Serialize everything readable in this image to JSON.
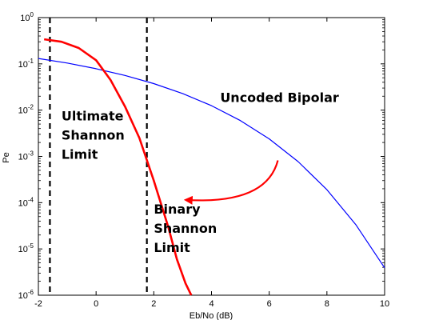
{
  "chart_data": {
    "type": "line",
    "xlabel": "Eb/No (dB)",
    "ylabel": "Pe",
    "xlim": [
      -2,
      10
    ],
    "ylim": [
      1e-06,
      1
    ],
    "yscale": "log",
    "xticks": [
      -2,
      0,
      2,
      4,
      6,
      8,
      10
    ],
    "yticks": [
      {
        "value": 1,
        "base": "10",
        "exp": "0"
      },
      {
        "value": 0.1,
        "base": "10",
        "exp": "-1"
      },
      {
        "value": 0.01,
        "base": "10",
        "exp": "-2"
      },
      {
        "value": 0.001,
        "base": "10",
        "exp": "-3"
      },
      {
        "value": 0.0001,
        "base": "10",
        "exp": "-4"
      },
      {
        "value": 1e-05,
        "base": "10",
        "exp": "-5"
      },
      {
        "value": 1e-06,
        "base": "10",
        "exp": "-6"
      }
    ],
    "grid": false,
    "series": [
      {
        "name": "Uncoded Bipolar",
        "color": "#0000ff",
        "x": [
          -2,
          -1,
          0,
          1,
          2,
          3,
          4,
          5,
          6,
          7,
          8,
          9,
          10
        ],
        "y": [
          0.131,
          0.104,
          0.0786,
          0.0563,
          0.0375,
          0.0229,
          0.0125,
          0.00595,
          0.00239,
          0.000773,
          0.000191,
          3.36e-05,
          3.9e-06
        ]
      },
      {
        "color": "#ff0000",
        "x": [
          -1.8,
          -1.2,
          -0.6,
          0,
          0.5,
          1.0,
          1.5,
          2.0,
          2.5,
          2.8,
          3.1,
          3.3
        ],
        "y": [
          0.34,
          0.3,
          0.22,
          0.12,
          0.045,
          0.012,
          0.0025,
          0.0003,
          3e-05,
          6e-06,
          1.8e-06,
          1e-06
        ]
      }
    ],
    "vlines": [
      {
        "x": -1.6,
        "style": "dashed",
        "color": "#000000"
      },
      {
        "x": 1.76,
        "style": "dashed",
        "color": "#000000"
      }
    ],
    "annotations": [
      {
        "lines": [
          "Uncoded Bipolar"
        ],
        "x": 4.3,
        "y": 0.015
      },
      {
        "lines": [
          "Ultimate",
          "Shannon",
          "Limit"
        ],
        "x": -1.2,
        "y": 0.006
      },
      {
        "lines": [
          "Binary",
          "Shannon",
          "Limit"
        ],
        "x": 2.0,
        "y": 5.85e-05
      }
    ],
    "arrow": {
      "color": "#ff0000",
      "from": {
        "x": 6.3,
        "y": 0.00082
      },
      "control": {
        "x": 5.9,
        "y": 9e-05
      },
      "to": {
        "x": 3.1,
        "y": 0.000115
      }
    }
  }
}
